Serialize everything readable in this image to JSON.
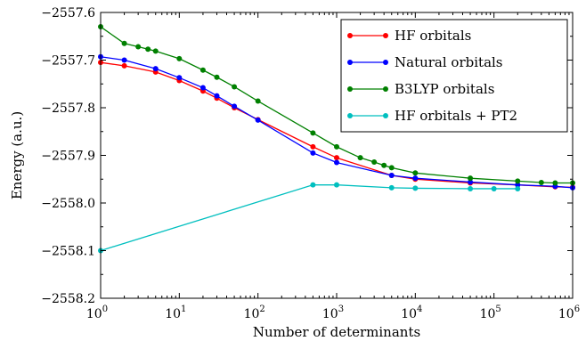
{
  "chart_data": {
    "type": "line",
    "xscale": "log",
    "xlabel": "Number of determinants",
    "ylabel": "Energy (a.u.)",
    "xlim": [
      1,
      1000000
    ],
    "ylim": [
      -2558.2,
      -2557.6
    ],
    "x_ticks": [
      {
        "value": 1,
        "base": "10",
        "exp": "0"
      },
      {
        "value": 10,
        "base": "10",
        "exp": "1"
      },
      {
        "value": 100,
        "base": "10",
        "exp": "2"
      },
      {
        "value": 1000,
        "base": "10",
        "exp": "3"
      },
      {
        "value": 10000,
        "base": "10",
        "exp": "4"
      },
      {
        "value": 100000,
        "base": "10",
        "exp": "5"
      },
      {
        "value": 1000000,
        "base": "10",
        "exp": "6"
      }
    ],
    "y_ticks": [
      {
        "value": -2557.6,
        "label": "−2557.6"
      },
      {
        "value": -2557.7,
        "label": "−2557.7"
      },
      {
        "value": -2557.8,
        "label": "−2557.8"
      },
      {
        "value": -2557.9,
        "label": "−2557.9"
      },
      {
        "value": -2558.0,
        "label": "−2558.0"
      },
      {
        "value": -2558.1,
        "label": "−2558.1"
      },
      {
        "value": -2558.2,
        "label": "−2558.2"
      }
    ],
    "legend_position": "top-right",
    "grid": false,
    "series": [
      {
        "name": "HF orbitals",
        "color": "#ff0000",
        "points": [
          [
            1,
            -2557.705
          ],
          [
            2,
            -2557.712
          ],
          [
            5,
            -2557.725
          ],
          [
            10,
            -2557.743
          ],
          [
            20,
            -2557.765
          ],
          [
            30,
            -2557.78
          ],
          [
            50,
            -2557.8
          ],
          [
            100,
            -2557.825
          ],
          [
            500,
            -2557.882
          ],
          [
            1000,
            -2557.905
          ],
          [
            5000,
            -2557.942
          ],
          [
            10000,
            -2557.95
          ],
          [
            50000,
            -2557.958
          ],
          [
            200000,
            -2557.962
          ],
          [
            600000,
            -2557.966
          ],
          [
            1000000,
            -2557.967
          ]
        ]
      },
      {
        "name": "Natural orbitals",
        "color": "#0000ff",
        "points": [
          [
            1,
            -2557.693
          ],
          [
            2,
            -2557.7
          ],
          [
            5,
            -2557.718
          ],
          [
            10,
            -2557.737
          ],
          [
            20,
            -2557.758
          ],
          [
            30,
            -2557.775
          ],
          [
            50,
            -2557.797
          ],
          [
            100,
            -2557.826
          ],
          [
            500,
            -2557.895
          ],
          [
            1000,
            -2557.915
          ],
          [
            5000,
            -2557.942
          ],
          [
            10000,
            -2557.948
          ],
          [
            50000,
            -2557.956
          ],
          [
            200000,
            -2557.962
          ],
          [
            600000,
            -2557.965
          ],
          [
            1000000,
            -2557.968
          ]
        ]
      },
      {
        "name": "B3LYP orbitals",
        "color": "#008000",
        "points": [
          [
            1,
            -2557.63
          ],
          [
            2,
            -2557.665
          ],
          [
            3,
            -2557.672
          ],
          [
            4,
            -2557.677
          ],
          [
            5,
            -2557.681
          ],
          [
            10,
            -2557.697
          ],
          [
            20,
            -2557.721
          ],
          [
            30,
            -2557.736
          ],
          [
            50,
            -2557.756
          ],
          [
            100,
            -2557.786
          ],
          [
            500,
            -2557.853
          ],
          [
            1000,
            -2557.882
          ],
          [
            2000,
            -2557.905
          ],
          [
            3000,
            -2557.914
          ],
          [
            4000,
            -2557.921
          ],
          [
            5000,
            -2557.926
          ],
          [
            10000,
            -2557.937
          ],
          [
            50000,
            -2557.948
          ],
          [
            200000,
            -2557.954
          ],
          [
            400000,
            -2557.957
          ],
          [
            600000,
            -2557.958
          ],
          [
            1000000,
            -2557.958
          ]
        ]
      },
      {
        "name": "HF orbitals + PT2",
        "color": "#00bfbf",
        "points": [
          [
            1,
            -2558.1
          ],
          [
            500,
            -2557.962
          ],
          [
            1000,
            -2557.962
          ],
          [
            5000,
            -2557.968
          ],
          [
            10000,
            -2557.969
          ],
          [
            50000,
            -2557.97
          ],
          [
            100000,
            -2557.97
          ],
          [
            200000,
            -2557.97
          ]
        ]
      }
    ]
  }
}
